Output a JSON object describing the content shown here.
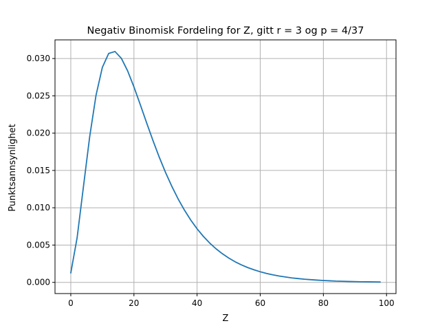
{
  "chart_data": {
    "type": "line",
    "title": "Negativ Binomisk Fordeling for Z, gitt r = 3 og p = 4/37",
    "xlabel": "Z",
    "ylabel": "Punktsannsynlighet",
    "xlim": [
      -5,
      103
    ],
    "ylim": [
      -0.0015,
      0.0325
    ],
    "xticks": [
      0,
      20,
      40,
      60,
      80,
      100
    ],
    "xtick_labels": [
      "0",
      "20",
      "40",
      "60",
      "80",
      "100"
    ],
    "yticks": [
      0.0,
      0.005,
      0.01,
      0.015,
      0.02,
      0.025,
      0.03
    ],
    "ytick_labels": [
      "0.000",
      "0.005",
      "0.010",
      "0.015",
      "0.020",
      "0.025",
      "0.030"
    ],
    "grid": true,
    "colors": {
      "line": "#1f77b4",
      "grid": "#b0b0b0"
    },
    "series": [
      {
        "x": [
          0,
          2,
          4,
          6,
          8,
          10,
          12,
          14,
          16,
          18,
          20,
          22,
          24,
          26,
          28,
          30,
          32,
          34,
          36,
          38,
          40,
          42,
          44,
          46,
          48,
          50,
          52,
          54,
          56,
          58,
          60,
          62,
          64,
          66,
          68,
          70,
          72,
          74,
          76,
          78,
          80,
          82,
          84,
          86,
          88,
          90,
          92,
          94,
          96,
          98
        ],
        "y": [
          0.00126,
          0.00597,
          0.01279,
          0.01957,
          0.02509,
          0.02882,
          0.03068,
          0.03094,
          0.03004,
          0.02835,
          0.0262,
          0.02383,
          0.0214,
          0.01904,
          0.0168,
          0.01474,
          0.01287,
          0.01118,
          0.00968,
          0.00835,
          0.00718,
          0.00616,
          0.00527,
          0.0045,
          0.00384,
          0.00327,
          0.00277,
          0.00235,
          0.00199,
          0.00169,
          0.00142,
          0.0012,
          0.00101,
          0.00085,
          0.00072,
          0.0006,
          0.00051,
          0.00042,
          0.00036,
          0.0003,
          0.00025,
          0.00021,
          0.00017,
          0.00015,
          0.00012,
          0.0001,
          8e-05,
          7e-05,
          6e-05,
          5e-05
        ]
      }
    ]
  }
}
